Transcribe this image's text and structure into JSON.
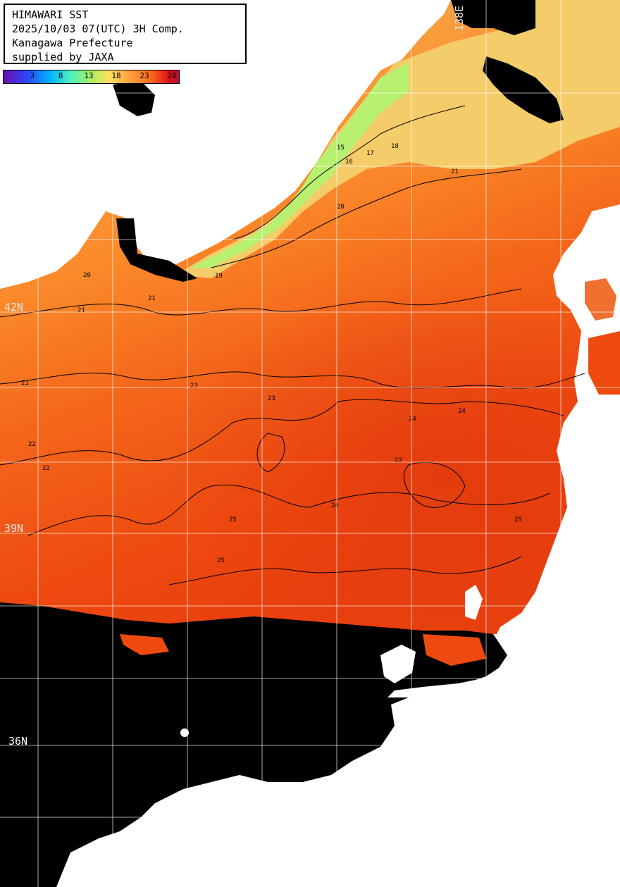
{
  "title": {
    "line1": "HIMAWARI SST",
    "line2": "2025/10/03 07(UTC) 3H Comp.",
    "line3": "Kanagawa Prefecture",
    "line4": "supplied by JAXA"
  },
  "legend": {
    "ticks": [
      "3",
      "8",
      "13",
      "18",
      "23",
      "28"
    ]
  },
  "grid_labels": {
    "lat_42": "42N",
    "lat_39": "39N",
    "lat_36": "36N",
    "lon_138": "138E"
  },
  "contour_labels": [
    "19",
    "20",
    "21",
    "21",
    "22",
    "23",
    "24",
    "25",
    "16",
    "15",
    "17",
    "18",
    "20",
    "21",
    "22",
    "23",
    "24",
    "25",
    "25",
    "21",
    "22",
    "24"
  ],
  "colors": {
    "land": "#ffffff",
    "no_data": "#000000",
    "grid": "#ffffff",
    "contour": "#000000",
    "warm_sea": "#ee4a10",
    "mid_sea": "#fb8a2a",
    "cool_sea": "#f4c060",
    "cold_sea": "#b8f070"
  }
}
